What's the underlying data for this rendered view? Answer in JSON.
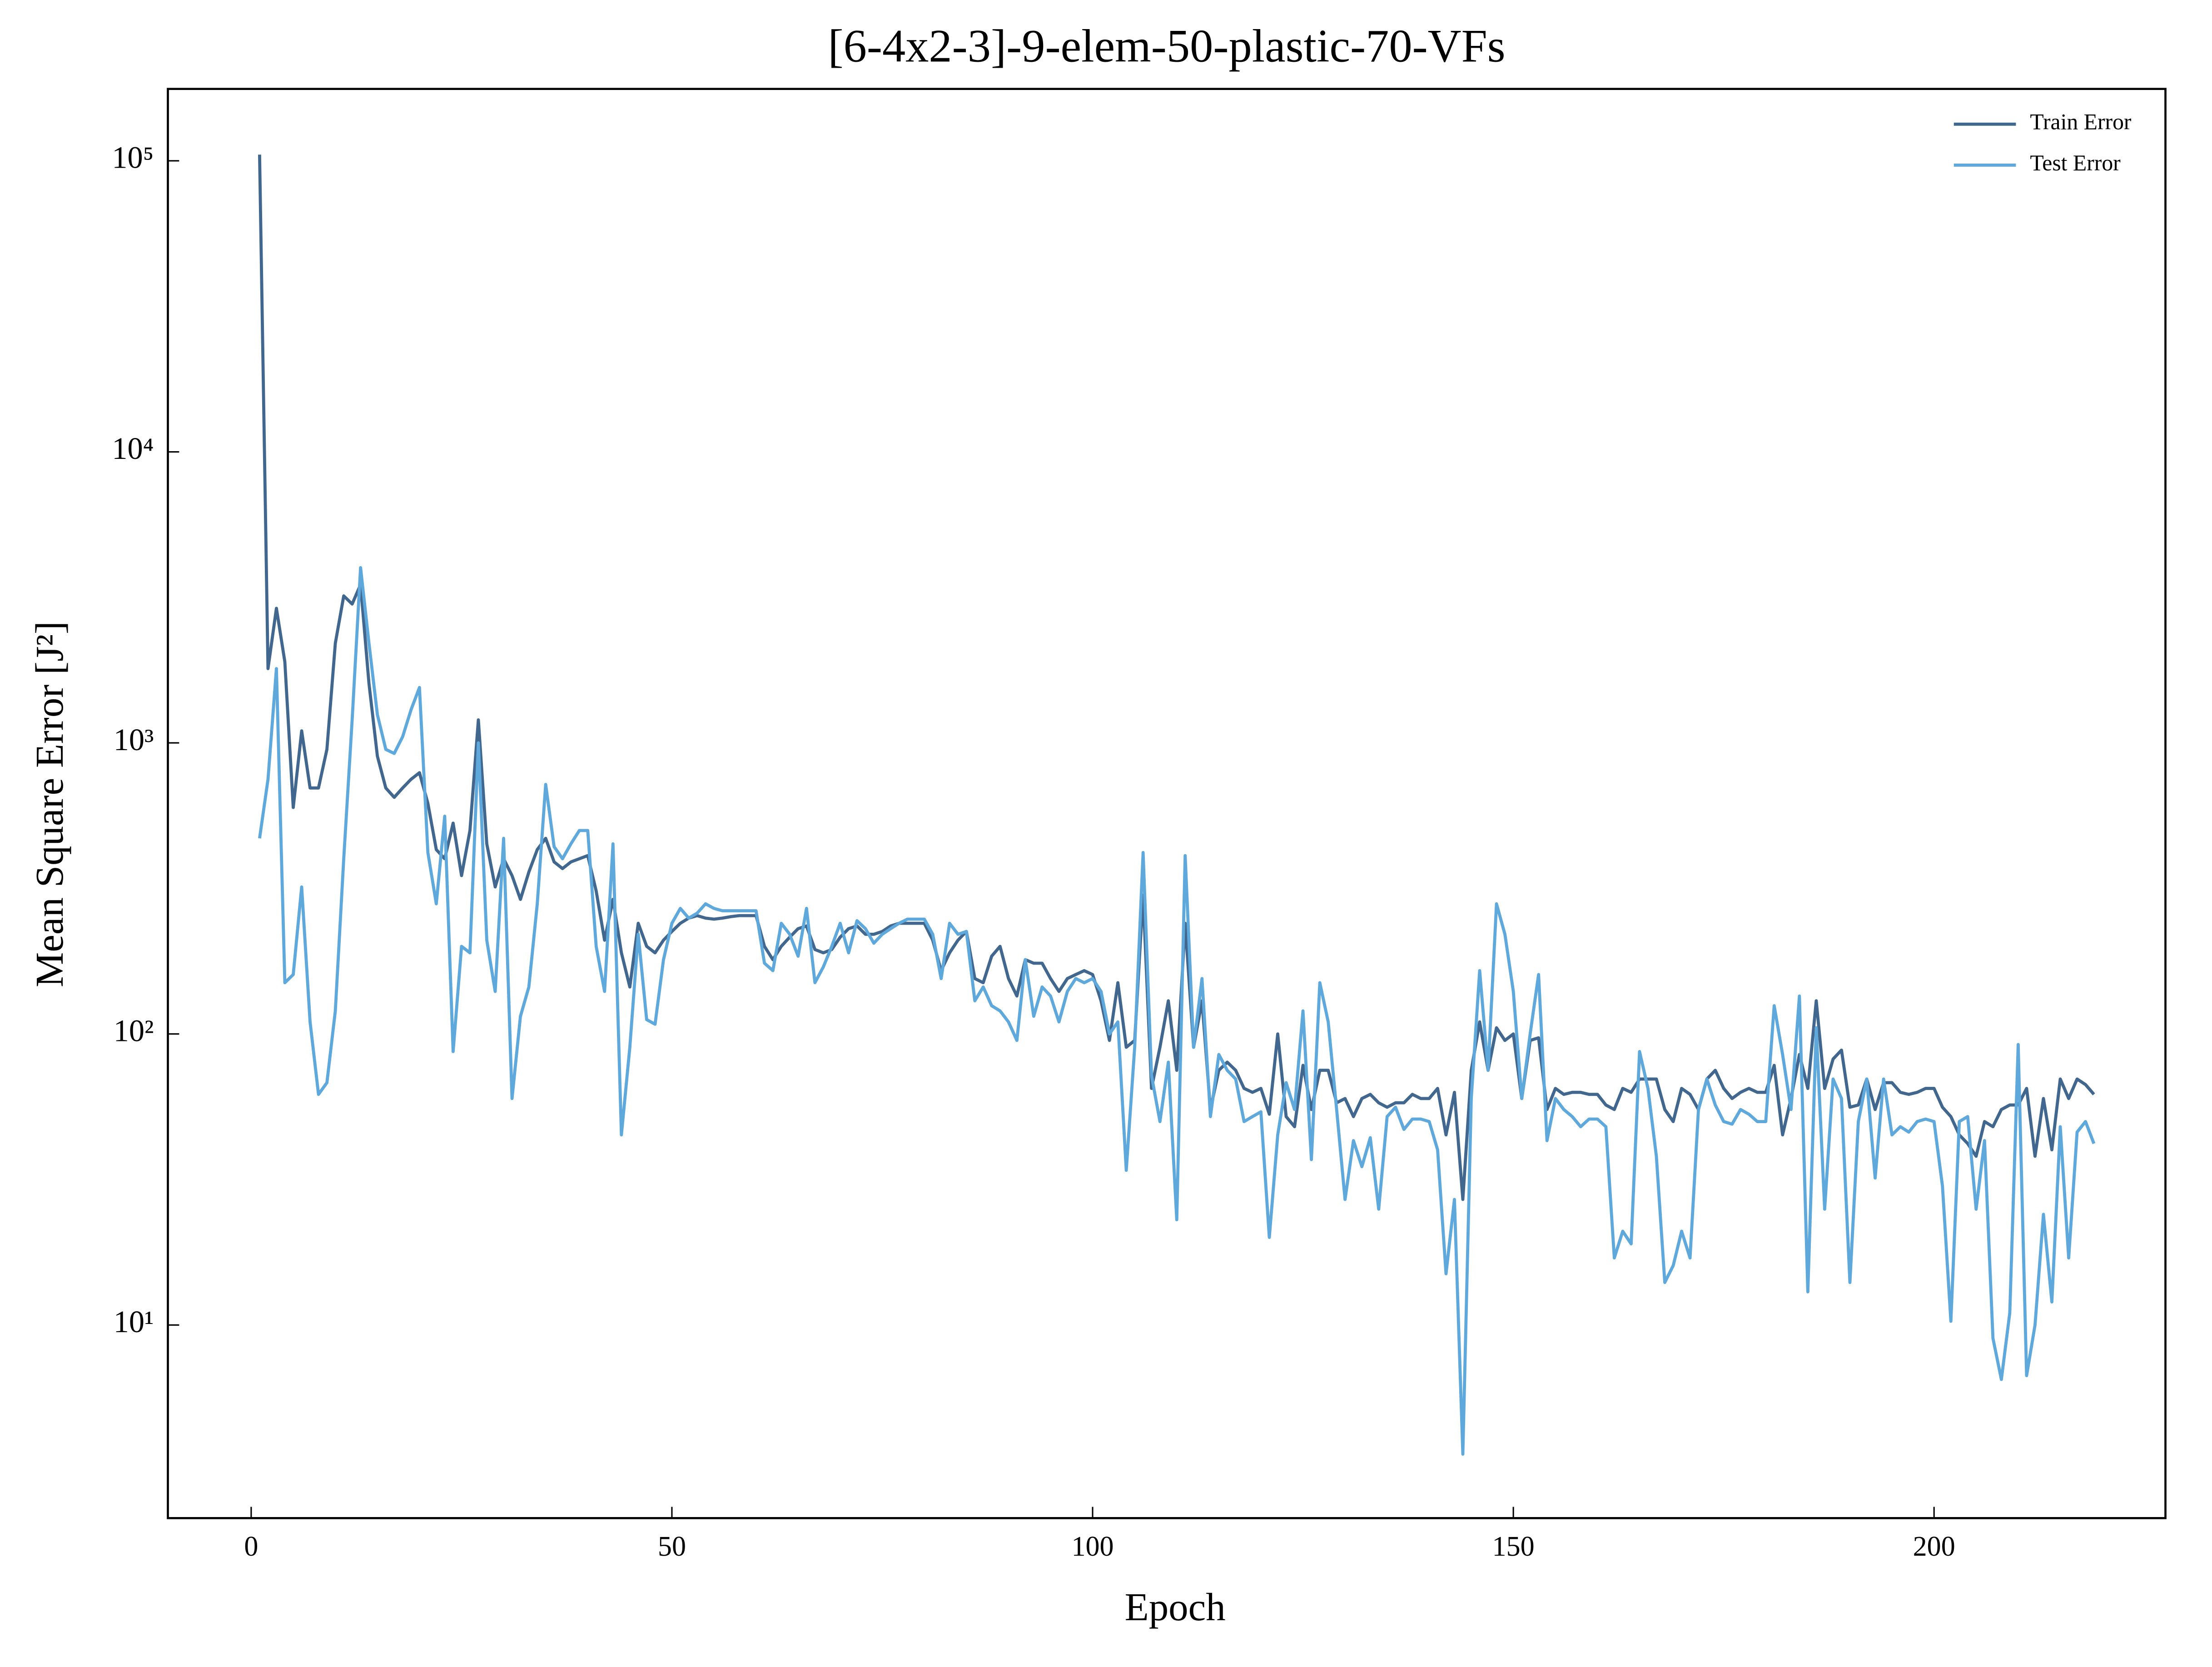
{
  "chart_data": {
    "type": "line",
    "title": "[6-4x2-3]-9-elem-50-plastic-70-VFs",
    "x_label": "Epoch",
    "y_label": "Mean Square Error [J²]",
    "log_y": true,
    "grid": false,
    "legend": "upper right",
    "xlim": [
      -9.9,
      227.5
    ],
    "xticks": [
      0,
      50,
      100,
      150,
      200
    ],
    "ylim": [
      2.17,
      176600
    ],
    "yticks": [
      {
        "value": 10,
        "label": "10¹"
      },
      {
        "value": 100,
        "label": "10²"
      },
      {
        "value": 1000,
        "label": "10³"
      },
      {
        "value": 10000,
        "label": "10⁴"
      },
      {
        "value": 100000,
        "label": "10⁵"
      }
    ],
    "x": [
      1,
      2,
      3,
      4,
      5,
      6,
      7,
      8,
      9,
      10,
      11,
      12,
      13,
      14,
      15,
      16,
      17,
      18,
      19,
      20,
      21,
      22,
      23,
      24,
      25,
      26,
      27,
      28,
      29,
      30,
      31,
      32,
      33,
      34,
      35,
      36,
      37,
      38,
      39,
      40,
      41,
      42,
      43,
      44,
      45,
      46,
      47,
      48,
      49,
      50,
      51,
      52,
      53,
      54,
      55,
      56,
      57,
      58,
      59,
      60,
      61,
      62,
      63,
      64,
      65,
      66,
      67,
      68,
      69,
      70,
      71,
      72,
      73,
      74,
      75,
      76,
      77,
      78,
      79,
      80,
      81,
      82,
      83,
      84,
      85,
      86,
      87,
      88,
      89,
      90,
      91,
      92,
      93,
      94,
      95,
      96,
      97,
      98,
      99,
      100,
      101,
      102,
      103,
      104,
      105,
      106,
      107,
      108,
      109,
      110,
      111,
      112,
      113,
      114,
      115,
      116,
      117,
      118,
      119,
      120,
      121,
      122,
      123,
      124,
      125,
      126,
      127,
      128,
      129,
      130,
      131,
      132,
      133,
      134,
      135,
      136,
      137,
      138,
      139,
      140,
      141,
      142,
      143,
      144,
      145,
      146,
      147,
      148,
      149,
      150,
      151,
      152,
      153,
      154,
      155,
      156,
      157,
      158,
      159,
      160,
      161,
      162,
      163,
      164,
      165,
      166,
      167,
      168,
      169,
      170,
      171,
      172,
      173,
      174,
      175,
      176,
      177,
      178,
      179,
      180,
      181,
      182,
      183,
      184,
      185,
      186,
      187,
      188,
      189,
      190,
      191,
      192,
      193,
      194,
      195,
      196,
      197,
      198,
      199,
      200,
      201,
      202,
      203,
      204,
      205,
      206,
      207,
      208,
      209,
      210,
      211,
      212,
      213,
      214,
      215,
      216,
      217,
      218,
      219
    ],
    "series": [
      {
        "name": "Train Error",
        "color": "#41678f",
        "values": [
          105000,
          1800,
          2900,
          1900,
          600,
          1100,
          700,
          700,
          950,
          2200,
          3200,
          3000,
          3500,
          1600,
          900,
          700,
          650,
          700,
          750,
          790,
          620,
          430,
          400,
          530,
          350,
          500,
          1200,
          450,
          320,
          400,
          350,
          290,
          360,
          430,
          470,
          390,
          370,
          390,
          400,
          410,
          310,
          210,
          290,
          190,
          145,
          240,
          200,
          190,
          210,
          225,
          240,
          250,
          255,
          250,
          248,
          250,
          253,
          255,
          255,
          255,
          200,
          180,
          200,
          215,
          230,
          235,
          195,
          190,
          195,
          215,
          230,
          235,
          220,
          220,
          225,
          235,
          240,
          240,
          240,
          240,
          210,
          165,
          190,
          210,
          225,
          155,
          150,
          185,
          200,
          155,
          135,
          180,
          175,
          175,
          155,
          140,
          155,
          160,
          165,
          160,
          130,
          95,
          150,
          90,
          95,
          300,
          65,
          90,
          130,
          75,
          240,
          90,
          130,
          55,
          75,
          80,
          75,
          65,
          63,
          65,
          53,
          100,
          52,
          48,
          78,
          55,
          75,
          75,
          58,
          60,
          52,
          60,
          62,
          58,
          56,
          58,
          58,
          62,
          60,
          60,
          65,
          45,
          63,
          27,
          75,
          110,
          75,
          105,
          95,
          100,
          60,
          95,
          97,
          55,
          65,
          62,
          63,
          63,
          62,
          62,
          57,
          55,
          65,
          63,
          70,
          70,
          70,
          55,
          50,
          65,
          62,
          55,
          70,
          75,
          65,
          60,
          63,
          65,
          63,
          63,
          78,
          45,
          60,
          85,
          65,
          130,
          65,
          82,
          88,
          56,
          57,
          70,
          55,
          68,
          68,
          63,
          62,
          63,
          65,
          65,
          56,
          52,
          45,
          42,
          38,
          50,
          48,
          55,
          57,
          57,
          65,
          38,
          60,
          40,
          70,
          60,
          70,
          67,
          62
        ]
      },
      {
        "name": "Test Error",
        "color": "#5fa8dc",
        "values": [
          470,
          750,
          1800,
          150,
          160,
          320,
          110,
          62,
          68,
          120,
          400,
          1200,
          4000,
          2200,
          1250,
          950,
          920,
          1050,
          1300,
          1550,
          420,
          280,
          560,
          87,
          200,
          190,
          1000,
          210,
          140,
          470,
          60,
          115,
          145,
          280,
          720,
          440,
          400,
          450,
          500,
          500,
          200,
          140,
          450,
          45,
          90,
          220,
          112,
          108,
          180,
          240,
          270,
          250,
          260,
          280,
          270,
          265,
          265,
          265,
          265,
          265,
          175,
          165,
          240,
          220,
          185,
          270,
          150,
          170,
          200,
          240,
          190,
          245,
          230,
          205,
          220,
          230,
          240,
          248,
          248,
          248,
          220,
          155,
          240,
          220,
          225,
          130,
          145,
          125,
          120,
          110,
          95,
          180,
          115,
          145,
          135,
          110,
          140,
          155,
          150,
          155,
          140,
          100,
          110,
          34,
          90,
          420,
          72,
          50,
          80,
          23,
          410,
          90,
          155,
          52,
          85,
          75,
          70,
          50,
          52,
          54,
          20,
          45,
          68,
          55,
          120,
          37,
          150,
          110,
          55,
          27,
          43,
          35,
          44,
          25,
          52,
          56,
          47,
          51,
          51,
          50,
          40,
          15,
          27,
          3.6,
          60,
          165,
          75,
          280,
          220,
          140,
          60,
          100,
          160,
          43,
          60,
          55,
          52,
          48,
          51,
          51,
          48,
          17,
          21,
          19,
          87,
          65,
          38,
          14,
          16,
          21,
          17,
          55,
          70,
          57,
          50,
          49,
          55,
          53,
          50,
          50,
          125,
          85,
          55,
          135,
          13,
          105,
          25,
          70,
          60,
          14,
          50,
          70,
          32,
          70,
          45,
          48,
          46,
          50,
          51,
          50,
          30,
          10.3,
          50,
          52,
          25,
          43,
          9,
          6.5,
          11,
          92,
          6.7,
          10,
          24,
          12,
          48,
          17,
          46,
          50,
          42
        ]
      }
    ]
  }
}
